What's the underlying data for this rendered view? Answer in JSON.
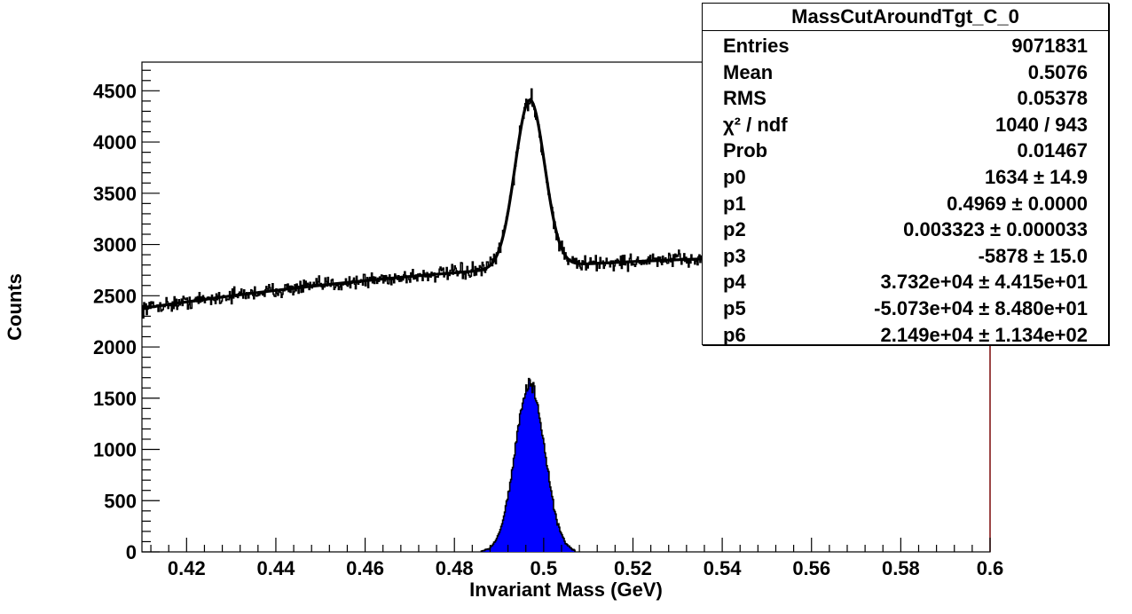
{
  "chart_data": {
    "type": "histogram",
    "xlabel": "Invariant Mass (GeV)",
    "ylabel": "Counts",
    "xlim": [
      0.41,
      0.6
    ],
    "ylim": [
      0,
      4780
    ],
    "xticks": [
      "0.42",
      "0.44",
      "0.46",
      "0.48",
      "0.5",
      "0.52",
      "0.54",
      "0.56",
      "0.58",
      "0.6"
    ],
    "yticks": [
      "0",
      "500",
      "1000",
      "1500",
      "2000",
      "2500",
      "3000",
      "3500",
      "4000",
      "4500"
    ],
    "series": [
      {
        "kind": "histogram-with-fit",
        "model": "gaussian(p0,p1,p2) + polynomial(p3..p6)",
        "params": [
          1634,
          0.4969,
          0.003323,
          -5878,
          37320,
          -50730,
          21490
        ],
        "color": "#000000"
      },
      {
        "kind": "filled-peak",
        "model": "gaussian",
        "params": [
          1634,
          0.4969,
          0.003323
        ],
        "range": [
          0.486,
          0.507
        ],
        "color": "#0000ff"
      }
    ]
  },
  "stats": {
    "title": "MassCutAroundTgt_C_0",
    "rows": [
      {
        "name": "Entries",
        "value": "9071831"
      },
      {
        "name": "Mean",
        "value": "0.5076"
      },
      {
        "name": "RMS",
        "value": "0.05378"
      },
      {
        "name": "χ² / ndf",
        "value": "1040 / 943"
      },
      {
        "name": "Prob",
        "value": "0.01467"
      },
      {
        "name": "p0",
        "value": "1634 ± 14.9"
      },
      {
        "name": "p1",
        "value": "0.4969 ± 0.0000"
      },
      {
        "name": "p2",
        "value": "0.003323 ± 0.000033"
      },
      {
        "name": "p3",
        "value": "-5878 ± 15.0"
      },
      {
        "name": "p4",
        "value": "3.732e+04 ± 4.415e+01"
      },
      {
        "name": "p5",
        "value": "-5.073e+04 ± 8.480e+01"
      },
      {
        "name": "p6",
        "value": "2.149e+04 ± 1.134e+02"
      }
    ]
  }
}
